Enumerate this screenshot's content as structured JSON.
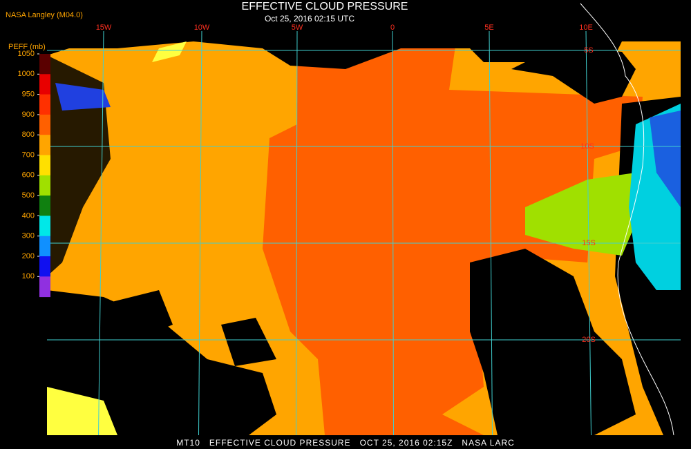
{
  "header": {
    "title": "EFFECTIVE CLOUD PRESSURE",
    "subtitle": "Oct 25, 2016 02:15 UTC",
    "source": "NASA Langley (M04.0)"
  },
  "colorbar": {
    "label": "PEFF (mb)",
    "ticks": [
      1050,
      1000,
      950,
      900,
      800,
      700,
      600,
      500,
      400,
      300,
      200,
      100
    ],
    "colors": [
      "#5a0000",
      "#e80000",
      "#ff3000",
      "#ff6000",
      "#ffa500",
      "#ffe000",
      "#a0e000",
      "#108010",
      "#00e8e8",
      "#1090ff",
      "#1010f0",
      "#9030e0"
    ]
  },
  "grid": {
    "lon_labels": [
      "15W",
      "10W",
      "5W",
      "0",
      "5E",
      "10E"
    ],
    "lat_labels": [
      "5S",
      "10S",
      "15S",
      "20S"
    ],
    "color": "#40d0d0"
  },
  "footer": "MT10   EFFECTIVE CLOUD PRESSURE   OCT 25, 2016 02:15Z   NASA LARC"
}
